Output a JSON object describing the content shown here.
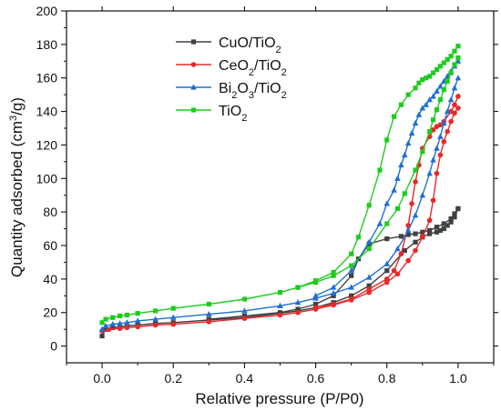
{
  "chart_data": {
    "type": "line",
    "xlabel": "Relative pressure (P/P0)",
    "ylabel_parts": [
      "Quantity adsorbed (cm",
      "3",
      "/g)"
    ],
    "xlim": [
      -0.1,
      1.1
    ],
    "ylim": [
      -10,
      200
    ],
    "xticks": [
      0.0,
      0.2,
      0.4,
      0.6,
      0.8,
      1.0
    ],
    "xtick_labels": [
      "0.0",
      "0.2",
      "0.4",
      "0.6",
      "0.8",
      "1.0"
    ],
    "yticks": [
      0,
      20,
      40,
      60,
      80,
      100,
      120,
      140,
      160,
      180,
      200
    ],
    "ytick_labels": [
      "0",
      "20",
      "40",
      "60",
      "80",
      "100",
      "120",
      "140",
      "160",
      "180",
      "200"
    ],
    "grid": false,
    "legend_position": "top-center",
    "series": [
      {
        "name": "CuO/TiO₂",
        "legend_parts": [
          "CuO/TiO",
          "2",
          ""
        ],
        "color": "#404040",
        "marker": "square",
        "adsorption": [
          [
            0.0,
            6
          ],
          [
            0.01,
            10
          ],
          [
            0.03,
            11
          ],
          [
            0.05,
            11.5
          ],
          [
            0.07,
            12
          ],
          [
            0.1,
            12.5
          ],
          [
            0.15,
            13.5
          ],
          [
            0.2,
            14
          ],
          [
            0.3,
            15.5
          ],
          [
            0.4,
            17
          ],
          [
            0.5,
            19.5
          ],
          [
            0.55,
            21
          ],
          [
            0.6,
            23
          ],
          [
            0.65,
            26
          ],
          [
            0.7,
            30
          ],
          [
            0.75,
            36
          ],
          [
            0.8,
            45
          ],
          [
            0.85,
            57
          ],
          [
            0.88,
            62
          ],
          [
            0.9,
            65
          ],
          [
            0.92,
            67
          ],
          [
            0.94,
            68
          ],
          [
            0.95,
            69
          ],
          [
            0.96,
            70
          ],
          [
            0.97,
            72
          ],
          [
            0.98,
            74
          ],
          [
            0.99,
            77
          ],
          [
            1.0,
            82
          ]
        ],
        "desorption": [
          [
            1.0,
            82
          ],
          [
            0.99,
            79
          ],
          [
            0.98,
            76
          ],
          [
            0.96,
            73
          ],
          [
            0.94,
            71
          ],
          [
            0.92,
            69
          ],
          [
            0.9,
            68
          ],
          [
            0.88,
            67
          ],
          [
            0.86,
            66.5
          ],
          [
            0.84,
            65.5
          ],
          [
            0.8,
            64
          ],
          [
            0.75,
            61
          ],
          [
            0.72,
            52
          ],
          [
            0.7,
            42
          ],
          [
            0.65,
            30
          ],
          [
            0.6,
            25
          ],
          [
            0.55,
            22
          ],
          [
            0.5,
            20
          ],
          [
            0.4,
            18
          ],
          [
            0.3,
            16
          ]
        ]
      },
      {
        "name": "CeO₂/TiO₂",
        "legend_parts": [
          "CeO",
          "2",
          "/TiO",
          "2"
        ],
        "color": "#e8282b",
        "marker": "circle",
        "adsorption": [
          [
            0.0,
            9
          ],
          [
            0.02,
            10
          ],
          [
            0.05,
            10.5
          ],
          [
            0.07,
            11
          ],
          [
            0.1,
            11.5
          ],
          [
            0.15,
            12.5
          ],
          [
            0.2,
            13
          ],
          [
            0.3,
            14.5
          ],
          [
            0.4,
            16.5
          ],
          [
            0.5,
            18.5
          ],
          [
            0.55,
            20
          ],
          [
            0.6,
            22
          ],
          [
            0.65,
            24.5
          ],
          [
            0.7,
            27.5
          ],
          [
            0.75,
            32
          ],
          [
            0.8,
            38
          ],
          [
            0.83,
            43
          ],
          [
            0.86,
            51
          ],
          [
            0.88,
            57
          ],
          [
            0.9,
            65
          ],
          [
            0.92,
            75
          ],
          [
            0.93,
            87
          ],
          [
            0.94,
            103
          ],
          [
            0.95,
            114
          ],
          [
            0.96,
            122
          ],
          [
            0.97,
            128
          ],
          [
            0.98,
            134
          ],
          [
            0.99,
            139
          ],
          [
            1.0,
            142
          ]
        ],
        "desorption": [
          [
            1.0,
            149
          ],
          [
            0.99,
            144
          ],
          [
            0.98,
            140
          ],
          [
            0.96,
            134
          ],
          [
            0.95,
            132
          ],
          [
            0.94,
            131
          ],
          [
            0.93,
            129
          ],
          [
            0.92,
            125
          ],
          [
            0.9,
            118
          ],
          [
            0.89,
            108
          ],
          [
            0.88,
            98
          ],
          [
            0.87,
            85
          ],
          [
            0.86,
            72
          ],
          [
            0.84,
            55
          ],
          [
            0.82,
            45
          ],
          [
            0.8,
            40
          ],
          [
            0.75,
            34
          ],
          [
            0.7,
            28
          ],
          [
            0.65,
            25
          ],
          [
            0.6,
            23
          ]
        ]
      },
      {
        "name": "Bi₂O₃/TiO₂",
        "legend_parts": [
          "Bi",
          "2",
          "O",
          "3",
          "/TiO",
          "2"
        ],
        "color": "#1f6fd1",
        "marker": "triangle",
        "adsorption": [
          [
            0.0,
            10
          ],
          [
            0.01,
            12
          ],
          [
            0.03,
            13
          ],
          [
            0.05,
            13.5
          ],
          [
            0.07,
            14
          ],
          [
            0.1,
            15
          ],
          [
            0.15,
            16
          ],
          [
            0.2,
            17
          ],
          [
            0.3,
            19
          ],
          [
            0.4,
            21
          ],
          [
            0.5,
            24
          ],
          [
            0.55,
            26
          ],
          [
            0.6,
            28.5
          ],
          [
            0.65,
            31.5
          ],
          [
            0.7,
            35
          ],
          [
            0.75,
            41
          ],
          [
            0.8,
            49
          ],
          [
            0.83,
            58
          ],
          [
            0.86,
            69
          ],
          [
            0.88,
            78
          ],
          [
            0.9,
            90
          ],
          [
            0.92,
            103
          ],
          [
            0.93,
            111
          ],
          [
            0.94,
            118
          ],
          [
            0.95,
            125
          ],
          [
            0.96,
            133
          ],
          [
            0.97,
            140
          ],
          [
            0.98,
            147
          ],
          [
            0.99,
            154
          ],
          [
            1.0,
            160
          ]
        ],
        "desorption": [
          [
            1.0,
            170
          ],
          [
            0.99,
            167
          ],
          [
            0.98,
            164
          ],
          [
            0.97,
            161
          ],
          [
            0.96,
            158
          ],
          [
            0.95,
            155
          ],
          [
            0.94,
            152
          ],
          [
            0.93,
            149
          ],
          [
            0.92,
            147
          ],
          [
            0.91,
            144
          ],
          [
            0.9,
            142
          ],
          [
            0.89,
            138
          ],
          [
            0.88,
            133
          ],
          [
            0.87,
            127
          ],
          [
            0.86,
            121
          ],
          [
            0.85,
            114
          ],
          [
            0.84,
            108
          ],
          [
            0.83,
            100
          ],
          [
            0.82,
            93
          ],
          [
            0.8,
            85
          ],
          [
            0.78,
            73
          ],
          [
            0.75,
            62
          ],
          [
            0.7,
            45
          ],
          [
            0.65,
            35
          ],
          [
            0.6,
            30
          ]
        ]
      },
      {
        "name": "TiO₂",
        "legend_parts": [
          "TiO",
          "2",
          ""
        ],
        "color": "#1dcc1d",
        "marker": "square",
        "adsorption": [
          [
            0.0,
            14
          ],
          [
            0.01,
            16
          ],
          [
            0.03,
            17
          ],
          [
            0.05,
            18
          ],
          [
            0.07,
            18.5
          ],
          [
            0.1,
            19.5
          ],
          [
            0.15,
            21
          ],
          [
            0.2,
            22.5
          ],
          [
            0.3,
            25
          ],
          [
            0.4,
            28
          ],
          [
            0.5,
            32
          ],
          [
            0.55,
            35
          ],
          [
            0.6,
            38
          ],
          [
            0.65,
            42
          ],
          [
            0.7,
            48
          ],
          [
            0.75,
            58
          ],
          [
            0.8,
            73
          ],
          [
            0.83,
            82
          ],
          [
            0.85,
            91
          ],
          [
            0.88,
            105
          ],
          [
            0.9,
            116
          ],
          [
            0.92,
            128
          ],
          [
            0.93,
            135
          ],
          [
            0.94,
            141
          ],
          [
            0.95,
            147
          ],
          [
            0.96,
            153
          ],
          [
            0.97,
            158
          ],
          [
            0.98,
            163
          ],
          [
            0.99,
            168
          ],
          [
            1.0,
            172
          ]
        ],
        "desorption": [
          [
            1.0,
            179
          ],
          [
            0.99,
            176
          ],
          [
            0.98,
            173
          ],
          [
            0.97,
            171
          ],
          [
            0.96,
            169
          ],
          [
            0.95,
            167
          ],
          [
            0.94,
            165
          ],
          [
            0.93,
            163
          ],
          [
            0.92,
            161
          ],
          [
            0.91,
            160
          ],
          [
            0.9,
            159
          ],
          [
            0.89,
            157
          ],
          [
            0.88,
            154
          ],
          [
            0.86,
            150
          ],
          [
            0.84,
            144
          ],
          [
            0.82,
            137
          ],
          [
            0.8,
            123
          ],
          [
            0.78,
            105
          ],
          [
            0.75,
            84
          ],
          [
            0.72,
            65
          ],
          [
            0.7,
            55
          ],
          [
            0.65,
            44
          ],
          [
            0.6,
            39
          ],
          [
            0.55,
            35
          ]
        ]
      }
    ]
  }
}
